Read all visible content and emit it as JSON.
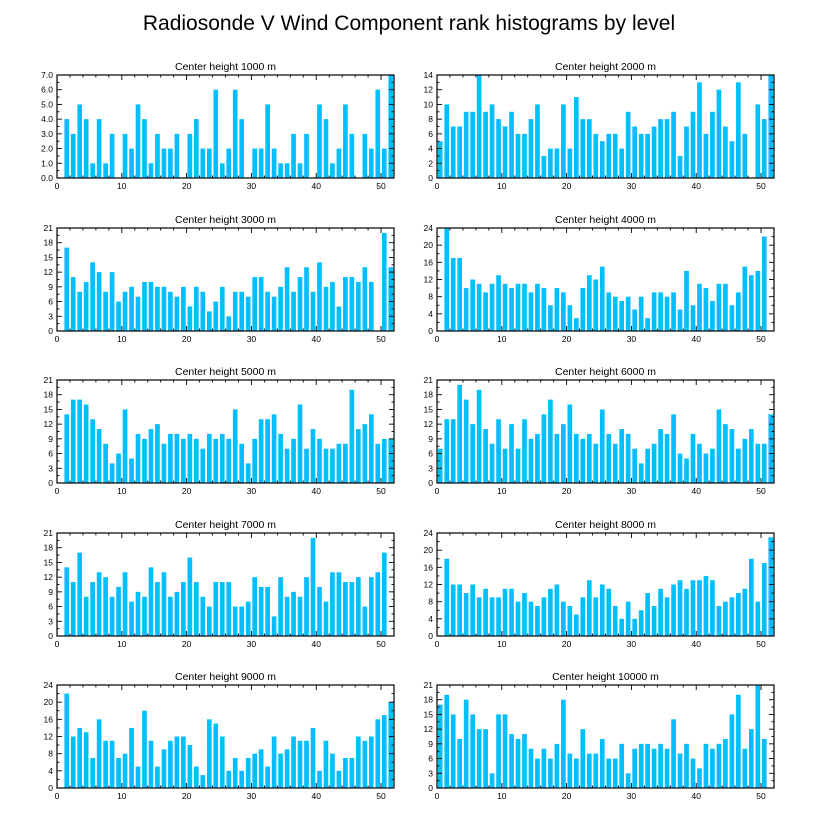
{
  "title": "Radiosonde V Wind Component rank histograms by level",
  "colors": {
    "bar": "#00bfff",
    "axis": "#000000",
    "background": "#ffffff"
  },
  "chart_data": [
    {
      "type": "bar",
      "title": "Center height 1000 m",
      "xlim": [
        0,
        52
      ],
      "ylim": [
        0,
        7
      ],
      "xticks": [
        0,
        10,
        20,
        30,
        40,
        50
      ],
      "yticks": [
        0,
        1,
        2,
        3,
        4,
        5,
        6,
        7
      ],
      "ytick_labels": [
        "0.0",
        "1.0",
        "2.0",
        "3.0",
        "4.0",
        "5.0",
        "6.0",
        "7.0"
      ],
      "categories": [
        0,
        1,
        2,
        3,
        4,
        5,
        6,
        7,
        8,
        9,
        10,
        11,
        12,
        13,
        14,
        15,
        16,
        17,
        18,
        19,
        20,
        21,
        22,
        23,
        24,
        25,
        26,
        27,
        28,
        29,
        30,
        31,
        32,
        33,
        34,
        35,
        36,
        37,
        38,
        39,
        40,
        41,
        42,
        43,
        44,
        45,
        46,
        47,
        48,
        49,
        50,
        51
      ],
      "values": [
        0,
        4,
        3,
        5,
        4,
        1,
        4,
        1,
        3,
        0,
        3,
        2,
        5,
        4,
        1,
        3,
        2,
        2,
        3,
        0,
        3,
        4,
        2,
        2,
        6,
        1,
        2,
        6,
        4,
        0,
        2,
        2,
        5,
        2,
        1,
        1,
        3,
        1,
        3,
        0,
        5,
        4,
        1,
        2,
        5,
        3,
        0,
        3,
        2,
        6,
        2,
        7
      ]
    },
    {
      "type": "bar",
      "title": "Center height 2000 m",
      "xlim": [
        0,
        52
      ],
      "ylim": [
        0,
        14
      ],
      "xticks": [
        0,
        10,
        20,
        30,
        40,
        50
      ],
      "yticks": [
        0,
        2,
        4,
        6,
        8,
        10,
        12,
        14
      ],
      "ytick_labels": [
        "0",
        "2",
        "4",
        "6",
        "8",
        "10",
        "12",
        "14"
      ],
      "categories": [
        0,
        1,
        2,
        3,
        4,
        5,
        6,
        7,
        8,
        9,
        10,
        11,
        12,
        13,
        14,
        15,
        16,
        17,
        18,
        19,
        20,
        21,
        22,
        23,
        24,
        25,
        26,
        27,
        28,
        29,
        30,
        31,
        32,
        33,
        34,
        35,
        36,
        37,
        38,
        39,
        40,
        41,
        42,
        43,
        44,
        45,
        46,
        47,
        48,
        49,
        50,
        51
      ],
      "values": [
        5,
        10,
        7,
        7,
        9,
        9,
        14,
        9,
        10,
        8,
        7,
        9,
        6,
        6,
        8,
        10,
        3,
        4,
        4,
        10,
        4,
        11,
        8,
        8,
        6,
        5,
        6,
        6,
        4,
        9,
        7,
        6,
        6,
        7,
        8,
        8,
        9,
        3,
        7,
        9,
        13,
        6,
        9,
        12,
        7,
        5,
        13,
        6,
        0,
        10,
        8,
        14
      ]
    },
    {
      "type": "bar",
      "title": "Center height 3000 m",
      "xlim": [
        0,
        52
      ],
      "ylim": [
        0,
        21
      ],
      "xticks": [
        0,
        10,
        20,
        30,
        40,
        50
      ],
      "yticks": [
        0,
        3,
        6,
        9,
        12,
        15,
        18,
        21
      ],
      "ytick_labels": [
        "0",
        "3",
        "6",
        "9",
        "12",
        "15",
        "18",
        "21"
      ],
      "categories": [
        0,
        1,
        2,
        3,
        4,
        5,
        6,
        7,
        8,
        9,
        10,
        11,
        12,
        13,
        14,
        15,
        16,
        17,
        18,
        19,
        20,
        21,
        22,
        23,
        24,
        25,
        26,
        27,
        28,
        29,
        30,
        31,
        32,
        33,
        34,
        35,
        36,
        37,
        38,
        39,
        40,
        41,
        42,
        43,
        44,
        45,
        46,
        47,
        48,
        49,
        50,
        51
      ],
      "values": [
        0,
        17,
        11,
        8,
        10,
        14,
        12,
        8,
        12,
        6,
        8,
        9,
        7,
        10,
        10,
        9,
        9,
        8,
        7,
        9,
        5,
        9,
        8,
        4,
        6,
        9,
        3,
        8,
        8,
        7,
        11,
        11,
        8,
        7,
        9,
        13,
        8,
        11,
        13,
        8,
        14,
        9,
        10,
        5,
        11,
        11,
        10,
        13,
        10,
        0,
        20,
        13
      ]
    },
    {
      "type": "bar",
      "title": "Center height 4000 m",
      "xlim": [
        0,
        52
      ],
      "ylim": [
        0,
        24
      ],
      "xticks": [
        0,
        10,
        20,
        30,
        40,
        50
      ],
      "yticks": [
        0,
        4,
        8,
        12,
        16,
        20,
        24
      ],
      "ytick_labels": [
        "0",
        "4",
        "8",
        "12",
        "16",
        "20",
        "24"
      ],
      "categories": [
        0,
        1,
        2,
        3,
        4,
        5,
        6,
        7,
        8,
        9,
        10,
        11,
        12,
        13,
        14,
        15,
        16,
        17,
        18,
        19,
        20,
        21,
        22,
        23,
        24,
        25,
        26,
        27,
        28,
        29,
        30,
        31,
        32,
        33,
        34,
        35,
        36,
        37,
        38,
        39,
        40,
        41,
        42,
        43,
        44,
        45,
        46,
        47,
        48,
        49,
        50,
        51
      ],
      "values": [
        0,
        24,
        17,
        17,
        10,
        12,
        11,
        9,
        11,
        13,
        11,
        10,
        11,
        11,
        9,
        11,
        10,
        6,
        10,
        9,
        6,
        3,
        10,
        13,
        12,
        15,
        9,
        8,
        7,
        8,
        5,
        8,
        3,
        9,
        9,
        8,
        9,
        5,
        14,
        6,
        11,
        10,
        7,
        11,
        11,
        6,
        9,
        15,
        13,
        14,
        22,
        0
      ]
    },
    {
      "type": "bar",
      "title": "Center height 5000 m",
      "xlim": [
        0,
        52
      ],
      "ylim": [
        0,
        21
      ],
      "xticks": [
        0,
        10,
        20,
        30,
        40,
        50
      ],
      "yticks": [
        0,
        3,
        6,
        9,
        12,
        15,
        18,
        21
      ],
      "ytick_labels": [
        "0",
        "3",
        "6",
        "9",
        "12",
        "15",
        "18",
        "21"
      ],
      "categories": [
        0,
        1,
        2,
        3,
        4,
        5,
        6,
        7,
        8,
        9,
        10,
        11,
        12,
        13,
        14,
        15,
        16,
        17,
        18,
        19,
        20,
        21,
        22,
        23,
        24,
        25,
        26,
        27,
        28,
        29,
        30,
        31,
        32,
        33,
        34,
        35,
        36,
        37,
        38,
        39,
        40,
        41,
        42,
        43,
        44,
        45,
        46,
        47,
        48,
        49,
        50,
        51
      ],
      "values": [
        0,
        14,
        17,
        17,
        16,
        13,
        11,
        8,
        4,
        6,
        15,
        5,
        10,
        9,
        11,
        12,
        8,
        10,
        10,
        9,
        10,
        9,
        7,
        10,
        9,
        10,
        9,
        15,
        8,
        4,
        9,
        13,
        13,
        14,
        10,
        7,
        9,
        16,
        7,
        11,
        9,
        7,
        7,
        8,
        8,
        19,
        11,
        12,
        14,
        8,
        9,
        9
      ]
    },
    {
      "type": "bar",
      "title": "Center height 6000 m",
      "xlim": [
        0,
        52
      ],
      "ylim": [
        0,
        21
      ],
      "xticks": [
        0,
        10,
        20,
        30,
        40,
        50
      ],
      "yticks": [
        0,
        3,
        6,
        9,
        12,
        15,
        18,
        21
      ],
      "ytick_labels": [
        "0",
        "3",
        "6",
        "9",
        "12",
        "15",
        "18",
        "21"
      ],
      "categories": [
        0,
        1,
        2,
        3,
        4,
        5,
        6,
        7,
        8,
        9,
        10,
        11,
        12,
        13,
        14,
        15,
        16,
        17,
        18,
        19,
        20,
        21,
        22,
        23,
        24,
        25,
        26,
        27,
        28,
        29,
        30,
        31,
        32,
        33,
        34,
        35,
        36,
        37,
        38,
        39,
        40,
        41,
        42,
        43,
        44,
        45,
        46,
        47,
        48,
        49,
        50,
        51
      ],
      "values": [
        7,
        13,
        13,
        20,
        17,
        12,
        19,
        11,
        8,
        13,
        7,
        12,
        7,
        13,
        9,
        10,
        14,
        17,
        10,
        12,
        16,
        10,
        9,
        10,
        8,
        15,
        10,
        8,
        11,
        10,
        7,
        4,
        7,
        8,
        11,
        10,
        14,
        6,
        5,
        10,
        8,
        6,
        7,
        15,
        12,
        11,
        7,
        9,
        11,
        8,
        8,
        14
      ]
    },
    {
      "type": "bar",
      "title": "Center height 7000 m",
      "xlim": [
        0,
        52
      ],
      "ylim": [
        0,
        21
      ],
      "xticks": [
        0,
        10,
        20,
        30,
        40,
        50
      ],
      "yticks": [
        0,
        3,
        6,
        9,
        12,
        15,
        18,
        21
      ],
      "ytick_labels": [
        "0",
        "3",
        "6",
        "9",
        "12",
        "15",
        "18",
        "21"
      ],
      "categories": [
        0,
        1,
        2,
        3,
        4,
        5,
        6,
        7,
        8,
        9,
        10,
        11,
        12,
        13,
        14,
        15,
        16,
        17,
        18,
        19,
        20,
        21,
        22,
        23,
        24,
        25,
        26,
        27,
        28,
        29,
        30,
        31,
        32,
        33,
        34,
        35,
        36,
        37,
        38,
        39,
        40,
        41,
        42,
        43,
        44,
        45,
        46,
        47,
        48,
        49,
        50,
        51
      ],
      "values": [
        0,
        14,
        11,
        17,
        8,
        11,
        13,
        12,
        8,
        10,
        13,
        7,
        9,
        8,
        14,
        11,
        13,
        8,
        9,
        11,
        16,
        11,
        8,
        6,
        11,
        11,
        11,
        6,
        6,
        7,
        12,
        10,
        10,
        4,
        12,
        8,
        9,
        8,
        12,
        20,
        10,
        7,
        13,
        13,
        11,
        11,
        12,
        6,
        12,
        13,
        17,
        0
      ]
    },
    {
      "type": "bar",
      "title": "Center height 8000 m",
      "xlim": [
        0,
        52
      ],
      "ylim": [
        0,
        24
      ],
      "xticks": [
        0,
        10,
        20,
        30,
        40,
        50
      ],
      "yticks": [
        0,
        4,
        8,
        12,
        16,
        20,
        24
      ],
      "ytick_labels": [
        "0",
        "4",
        "8",
        "12",
        "16",
        "20",
        "24"
      ],
      "categories": [
        0,
        1,
        2,
        3,
        4,
        5,
        6,
        7,
        8,
        9,
        10,
        11,
        12,
        13,
        14,
        15,
        16,
        17,
        18,
        19,
        20,
        21,
        22,
        23,
        24,
        25,
        26,
        27,
        28,
        29,
        30,
        31,
        32,
        33,
        34,
        35,
        36,
        37,
        38,
        39,
        40,
        41,
        42,
        43,
        44,
        45,
        46,
        47,
        48,
        49,
        50,
        51
      ],
      "values": [
        0,
        18,
        12,
        12,
        10,
        12,
        9,
        11,
        9,
        9,
        11,
        11,
        8,
        10,
        8,
        7,
        9,
        11,
        12,
        8,
        7,
        5,
        9,
        13,
        9,
        12,
        11,
        7,
        4,
        8,
        4,
        6,
        10,
        7,
        11,
        9,
        12,
        13,
        11,
        13,
        13,
        14,
        13,
        7,
        8,
        9,
        10,
        11,
        18,
        8,
        17,
        23
      ]
    },
    {
      "type": "bar",
      "title": "Center height 9000 m",
      "xlim": [
        0,
        52
      ],
      "ylim": [
        0,
        24
      ],
      "xticks": [
        0,
        10,
        20,
        30,
        40,
        50
      ],
      "yticks": [
        0,
        4,
        8,
        12,
        16,
        20,
        24
      ],
      "ytick_labels": [
        "0",
        "4",
        "8",
        "12",
        "16",
        "20",
        "24"
      ],
      "categories": [
        0,
        1,
        2,
        3,
        4,
        5,
        6,
        7,
        8,
        9,
        10,
        11,
        12,
        13,
        14,
        15,
        16,
        17,
        18,
        19,
        20,
        21,
        22,
        23,
        24,
        25,
        26,
        27,
        28,
        29,
        30,
        31,
        32,
        33,
        34,
        35,
        36,
        37,
        38,
        39,
        40,
        41,
        42,
        43,
        44,
        45,
        46,
        47,
        48,
        49,
        50,
        51
      ],
      "values": [
        0,
        22,
        12,
        14,
        13,
        7,
        16,
        11,
        11,
        7,
        8,
        14,
        5,
        18,
        11,
        5,
        9,
        11,
        12,
        12,
        10,
        5,
        3,
        16,
        15,
        12,
        4,
        7,
        4,
        7,
        8,
        9,
        5,
        12,
        8,
        9,
        12,
        11,
        11,
        14,
        4,
        11,
        8,
        4,
        7,
        7,
        12,
        11,
        12,
        16,
        17,
        20
      ]
    },
    {
      "type": "bar",
      "title": "Center height 10000 m",
      "xlim": [
        0,
        52
      ],
      "ylim": [
        0,
        21
      ],
      "xticks": [
        0,
        10,
        20,
        30,
        40,
        50
      ],
      "yticks": [
        0,
        3,
        6,
        9,
        12,
        15,
        18,
        21
      ],
      "ytick_labels": [
        "0",
        "3",
        "6",
        "9",
        "12",
        "15",
        "18",
        "21"
      ],
      "categories": [
        0,
        1,
        2,
        3,
        4,
        5,
        6,
        7,
        8,
        9,
        10,
        11,
        12,
        13,
        14,
        15,
        16,
        17,
        18,
        19,
        20,
        21,
        22,
        23,
        24,
        25,
        26,
        27,
        28,
        29,
        30,
        31,
        32,
        33,
        34,
        35,
        36,
        37,
        38,
        39,
        40,
        41,
        42,
        43,
        44,
        45,
        46,
        47,
        48,
        49,
        50,
        51
      ],
      "values": [
        17,
        19,
        15,
        10,
        18,
        15,
        12,
        12,
        3,
        15,
        15,
        11,
        10,
        11,
        8,
        6,
        8,
        6,
        9,
        18,
        7,
        6,
        12,
        7,
        7,
        10,
        6,
        6,
        9,
        3,
        8,
        9,
        9,
        8,
        9,
        8,
        14,
        7,
        9,
        6,
        4,
        9,
        8,
        9,
        10,
        15,
        19,
        8,
        12,
        21,
        10,
        0
      ]
    }
  ]
}
